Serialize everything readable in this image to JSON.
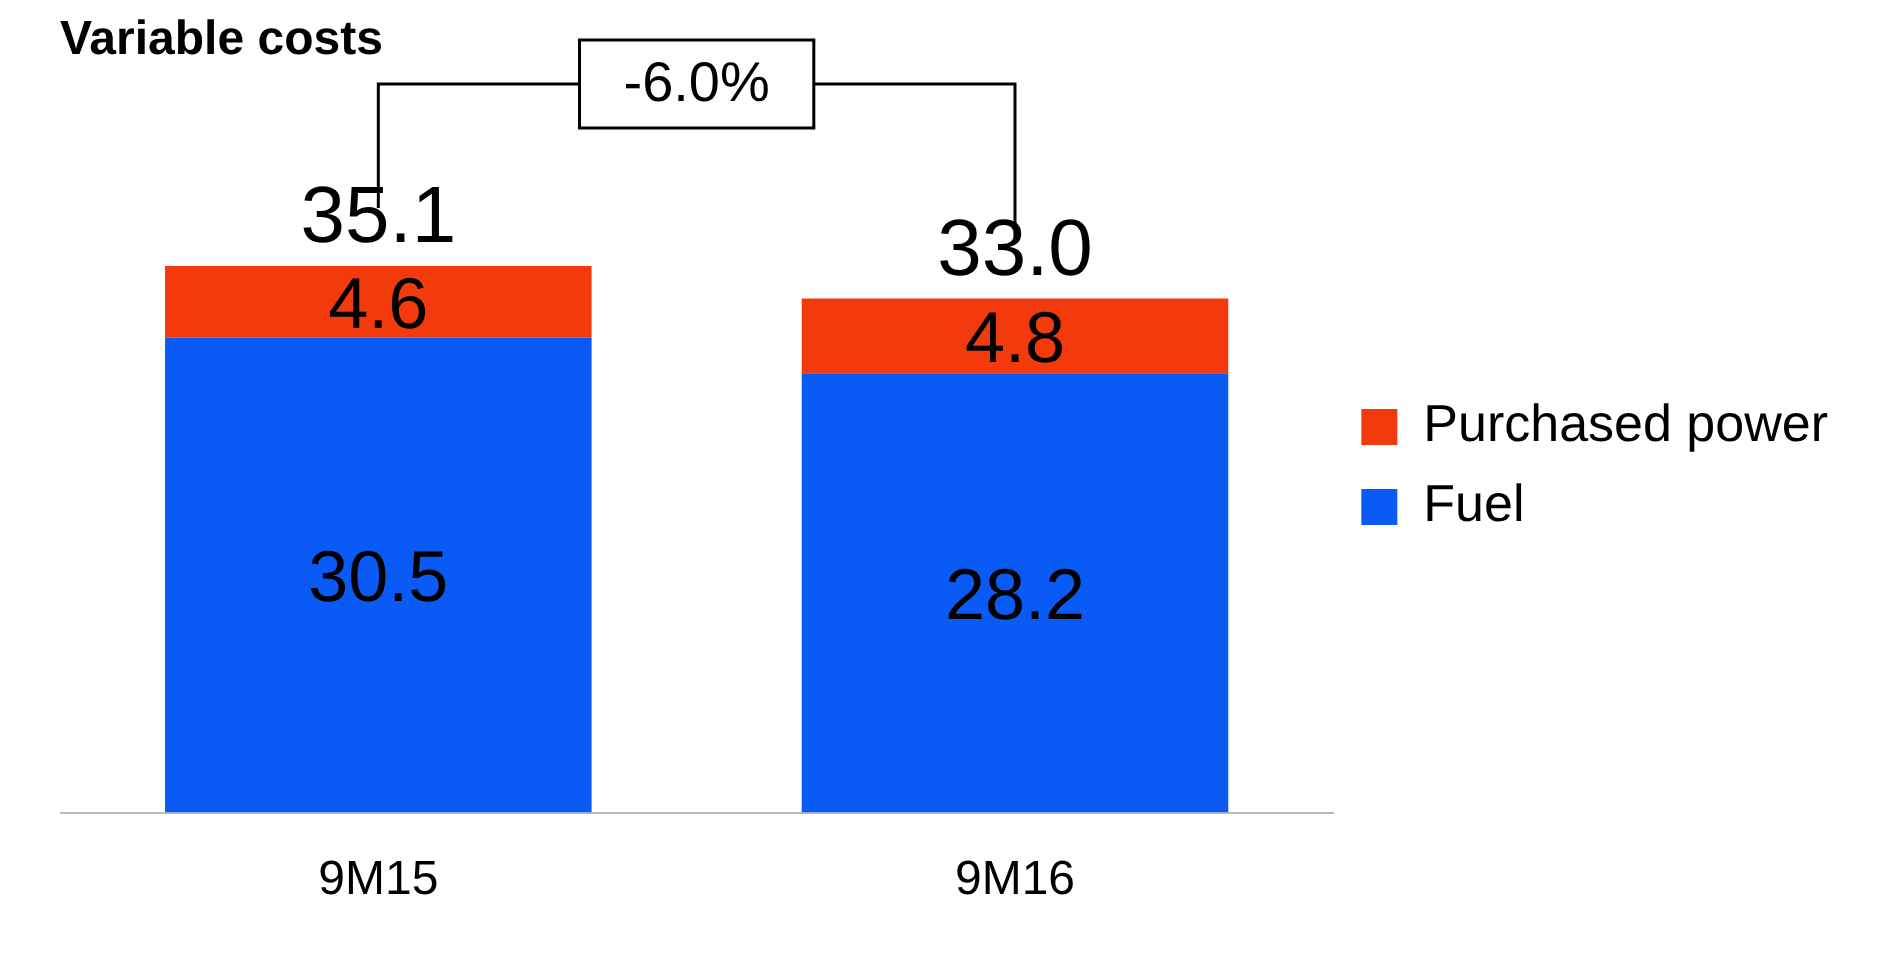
{
  "chart_data": {
    "type": "bar",
    "title": "Variable costs",
    "categories": [
      "9M15",
      "9M16"
    ],
    "stacked": true,
    "series": [
      {
        "name": "Fuel",
        "color": "#0a5af5",
        "values": [
          30.5,
          28.2
        ]
      },
      {
        "name": "Purchased power",
        "color": "#f23a0c",
        "values": [
          4.6,
          4.8
        ]
      }
    ],
    "data_labels": true,
    "totals": [
      "35.1",
      "33.0"
    ],
    "annotations": [
      "-6.0%"
    ],
    "legend": "right",
    "grid": false
  }
}
